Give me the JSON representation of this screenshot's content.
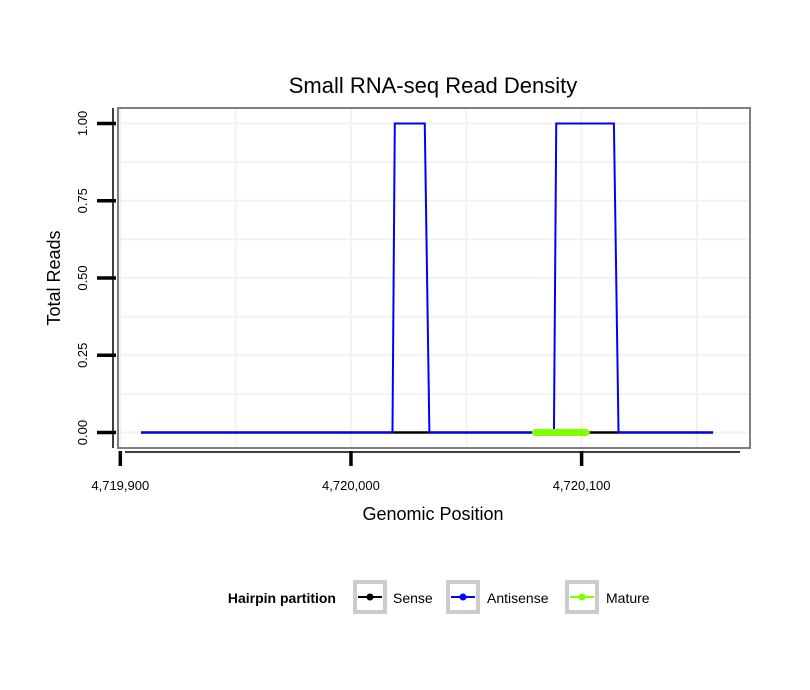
{
  "chart_data": {
    "type": "line",
    "title": "Small RNA-seq Read Density",
    "xlabel": "Genomic Position",
    "ylabel": "Total Reads",
    "xlim": [
      4719899,
      4720173
    ],
    "ylim": [
      -0.05,
      1.05
    ],
    "x_ticks": [
      4719900,
      4720000,
      4720100
    ],
    "x_tick_labels": [
      "4,719,900",
      "4,720,000",
      "4,720,100"
    ],
    "y_ticks": [
      0,
      0.25,
      0.5,
      0.75,
      1.0
    ],
    "y_tick_labels": [
      "0.00",
      "0.25",
      "0.50",
      "0.75",
      "1.00"
    ],
    "grid": true,
    "legend": {
      "title": "Hairpin partition",
      "position": "bottom",
      "entries": [
        "Sense",
        "Antisense",
        "Mature"
      ]
    },
    "series": [
      {
        "name": "Sense",
        "color": "#000000",
        "width": 2.5,
        "x": [
          4719909,
          4720157
        ],
        "y": [
          0,
          0
        ]
      },
      {
        "name": "Antisense",
        "color": "#0000ff",
        "width": 2,
        "x": [
          4719909,
          4720018,
          4720019,
          4720032,
          4720034,
          4720088,
          4720089,
          4720114,
          4720116,
          4720157
        ],
        "y": [
          0,
          0,
          1,
          1,
          0,
          0,
          1,
          1,
          0,
          0
        ]
      },
      {
        "name": "Mature",
        "color": "#80ff00",
        "width": 7,
        "x": [
          4720080,
          4720102
        ],
        "y": [
          0,
          0
        ]
      }
    ]
  }
}
